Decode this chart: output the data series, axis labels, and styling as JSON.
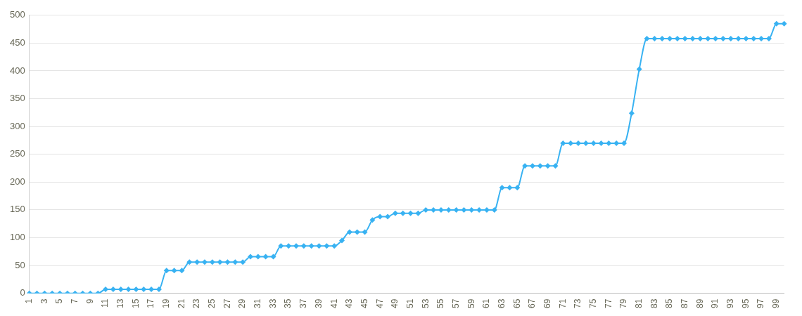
{
  "chart_data": {
    "type": "line",
    "categories": [
      "1",
      null,
      "3",
      null,
      "5",
      null,
      "7",
      null,
      "9",
      null,
      "11",
      null,
      "13",
      null,
      "15",
      null,
      "17",
      null,
      "19",
      null,
      "21",
      null,
      "23",
      null,
      "25",
      null,
      "27",
      null,
      "29",
      null,
      "31",
      null,
      "33",
      null,
      "35",
      null,
      "37",
      null,
      "39",
      null,
      "41",
      null,
      "43",
      null,
      "45",
      null,
      "47",
      null,
      "49",
      null,
      "51",
      null,
      "53",
      null,
      "55",
      null,
      "57",
      null,
      "59",
      null,
      "61",
      null,
      "63",
      null,
      "65",
      null,
      "67",
      null,
      "69",
      null,
      "71",
      null,
      "73",
      null,
      "75",
      null,
      "77",
      null,
      "79",
      null,
      "81",
      null,
      "83",
      null,
      "85",
      null,
      "87",
      null,
      "89",
      null,
      "91",
      null,
      "93",
      null,
      "95",
      null,
      "97",
      null,
      "99",
      null
    ],
    "series": [
      {
        "color": "#38b2f2",
        "values": [
          0,
          0,
          0,
          0,
          0,
          0,
          0,
          0,
          0,
          0,
          7,
          7,
          7,
          7,
          7,
          7,
          7,
          7,
          41,
          41,
          41,
          56,
          56,
          56,
          56,
          56,
          56,
          56,
          56,
          66,
          66,
          66,
          66,
          85,
          85,
          85,
          85,
          85,
          85,
          85,
          85,
          95,
          110,
          110,
          110,
          132,
          138,
          138,
          144,
          144,
          144,
          144,
          150,
          150,
          150,
          150,
          150,
          150,
          150,
          150,
          150,
          150,
          190,
          190,
          190,
          229,
          229,
          229,
          229,
          229,
          270,
          270,
          270,
          270,
          270,
          270,
          270,
          270,
          270,
          324,
          403,
          458,
          458,
          458,
          458,
          458,
          458,
          458,
          458,
          458,
          458,
          458,
          458,
          458,
          458,
          458,
          458,
          458,
          485,
          485
        ]
      }
    ],
    "ylim": [
      0,
      500
    ],
    "yticks": [
      0,
      50,
      100,
      150,
      200,
      250,
      300,
      350,
      400,
      450,
      500
    ],
    "grid": "y",
    "legend": false,
    "marker": "diamond",
    "line_style": "solid"
  }
}
